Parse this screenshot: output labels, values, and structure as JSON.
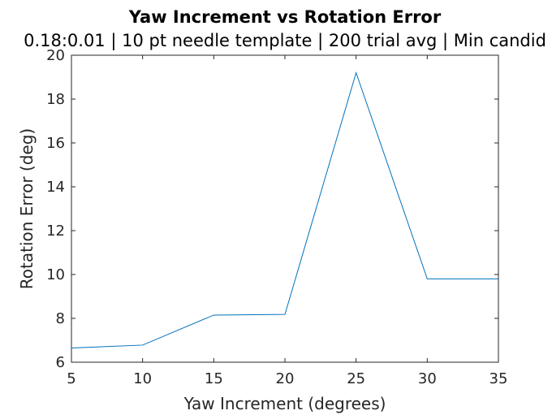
{
  "chart_data": {
    "type": "line",
    "title": "Yaw Increment vs Rotation Error",
    "subtitle": "0.18:0.01 | 10 pt needle template | 200 trial avg | Min candid",
    "xlabel": "Yaw Increment (degrees)",
    "ylabel": "Rotation Error (deg)",
    "xlim": [
      5,
      35
    ],
    "ylim": [
      6,
      20
    ],
    "xticks": [
      "5",
      "10",
      "15",
      "20",
      "25",
      "30",
      "35"
    ],
    "yticks": [
      "6",
      "8",
      "10",
      "12",
      "14",
      "16",
      "18",
      "20"
    ],
    "grid": false,
    "series": [
      {
        "color": "#0072BD",
        "x": [
          5,
          10,
          15,
          20,
          25,
          30,
          35
        ],
        "y": [
          6.65,
          6.78,
          8.15,
          8.18,
          19.2,
          9.8,
          9.8
        ]
      }
    ]
  }
}
